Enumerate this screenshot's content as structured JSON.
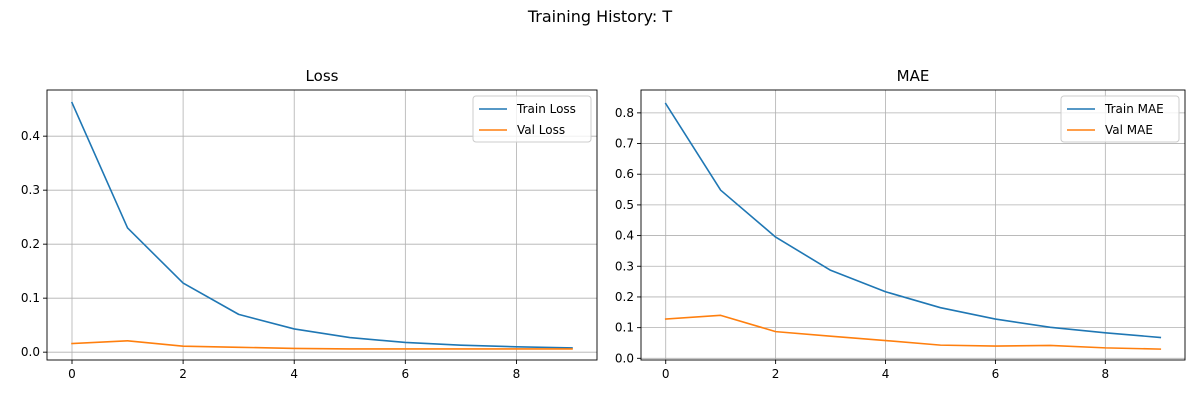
{
  "figure": {
    "suptitle": "Training History: T"
  },
  "chart_data": [
    {
      "type": "line",
      "title": "Loss",
      "xlabel": "",
      "ylabel": "",
      "xlim": [
        -0.45,
        9.45
      ],
      "ylim": [
        -0.0145,
        0.4855
      ],
      "xticks": [
        0,
        2,
        4,
        6,
        8
      ],
      "yticks": [
        0.0,
        0.1,
        0.2,
        0.3,
        0.4
      ],
      "ytick_decimals": 1,
      "grid": true,
      "legend_position": "top-right",
      "x": [
        0,
        1,
        2,
        3,
        4,
        5,
        6,
        7,
        8,
        9
      ],
      "series": [
        {
          "name": "Train Loss",
          "color": "#1f77b4",
          "values": [
            0.462,
            0.23,
            0.128,
            0.07,
            0.043,
            0.027,
            0.018,
            0.013,
            0.01,
            0.008
          ]
        },
        {
          "name": "Val Loss",
          "color": "#ff7f0e",
          "values": [
            0.016,
            0.021,
            0.011,
            0.009,
            0.007,
            0.006,
            0.006,
            0.006,
            0.006,
            0.006
          ]
        }
      ]
    },
    {
      "type": "line",
      "title": "MAE",
      "xlabel": "",
      "ylabel": "",
      "xlim": [
        -0.45,
        9.45
      ],
      "ylim": [
        -0.0055,
        0.8745
      ],
      "xticks": [
        0,
        2,
        4,
        6,
        8
      ],
      "yticks": [
        0.0,
        0.1,
        0.2,
        0.3,
        0.4,
        0.5,
        0.6,
        0.7,
        0.8
      ],
      "ytick_decimals": 1,
      "grid": true,
      "legend_position": "top-right",
      "x": [
        0,
        1,
        2,
        3,
        4,
        5,
        6,
        7,
        8,
        9
      ],
      "series": [
        {
          "name": "Train MAE",
          "color": "#1f77b4",
          "values": [
            0.83,
            0.548,
            0.395,
            0.287,
            0.217,
            0.165,
            0.128,
            0.101,
            0.083,
            0.068
          ]
        },
        {
          "name": "Val MAE",
          "color": "#ff7f0e",
          "values": [
            0.128,
            0.14,
            0.087,
            0.072,
            0.058,
            0.043,
            0.04,
            0.042,
            0.034,
            0.03
          ]
        }
      ]
    }
  ]
}
